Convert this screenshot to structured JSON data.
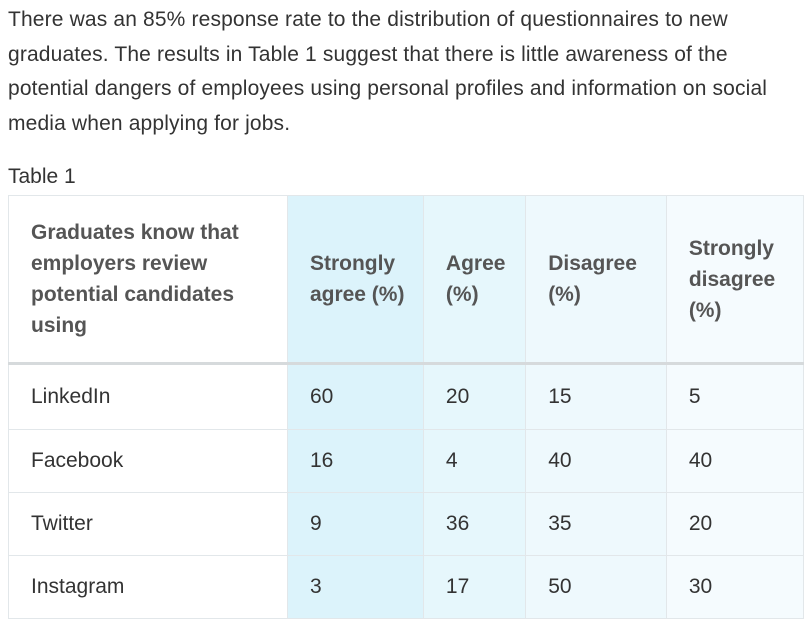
{
  "intro_text": "There was an 85% response rate to the distribution of questionnaires to new graduates. The results in Table 1 suggest that there is little awareness of the potential dangers of employees using personal profiles and information on social media when applying for jobs.",
  "table": {
    "caption": "Table 1",
    "headers": [
      "Graduates know that employers review potential candidates using",
      "Strongly agree (%)",
      "Agree (%)",
      "Disagree (%)",
      "Strongly disagree (%)"
    ],
    "rows": [
      [
        "LinkedIn",
        "60",
        "20",
        "15",
        "5"
      ],
      [
        "Facebook",
        "16",
        "4",
        "40",
        "40"
      ],
      [
        "Twitter",
        "9",
        "36",
        "35",
        "20"
      ],
      [
        "Instagram",
        "3",
        "17",
        "50",
        "30"
      ]
    ]
  },
  "colors": {
    "text": "#333333",
    "header_text": "#555555",
    "strongly_agree_bg": "#dcf3fb",
    "agree_bg": "#e6f7fc",
    "disagree_bg": "#eef9fd",
    "strongly_disagree_bg": "#f5fbfe",
    "border": "#e2e7ea"
  }
}
